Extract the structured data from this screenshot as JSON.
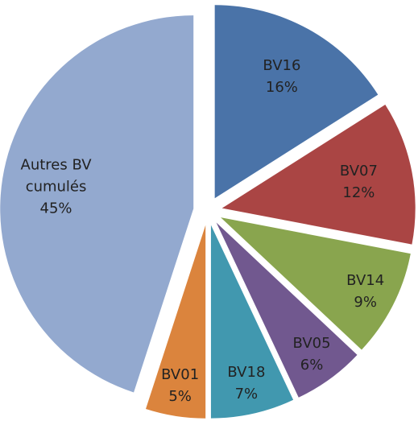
{
  "chart_data": {
    "type": "pie",
    "categories": [
      "BV16",
      "BV07",
      "BV14",
      "BV05",
      "BV18",
      "BV01",
      "Autres BV cumulés"
    ],
    "values": [
      16,
      12,
      9,
      6,
      7,
      5,
      45
    ],
    "value_labels": [
      "16%",
      "12%",
      "9%",
      "6%",
      "7%",
      "5%",
      "45%"
    ],
    "colors": [
      "#4a73a8",
      "#aa4544",
      "#89a54e",
      "#71588f",
      "#4198af",
      "#db843d",
      "#93a9cf"
    ]
  }
}
